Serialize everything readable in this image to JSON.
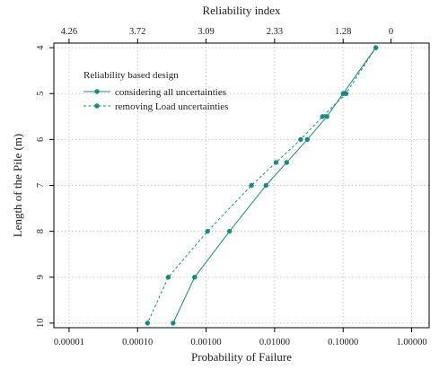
{
  "chart_data": {
    "type": "line",
    "title": "",
    "xlabel": "Probability of Failure",
    "ylabel": "Length of the Pile (m)",
    "x2label": "Reliability index",
    "x_scale": "log10",
    "xlim": [
      6e-06,
      1.8
    ],
    "ylim": [
      10.1,
      3.9
    ],
    "x_ticks": [
      1e-05,
      0.0001,
      0.001,
      0.01,
      0.1,
      1
    ],
    "x_tick_labels": [
      "0.00001",
      "0.00010",
      "0.00100",
      "0.01000",
      "0.10000",
      "1.00000"
    ],
    "y_ticks": [
      4,
      5,
      6,
      7,
      8,
      9,
      10
    ],
    "y_tick_labels": [
      "4",
      "5",
      "6",
      "7",
      "8",
      "9",
      "10"
    ],
    "x2_ticks": [
      1e-05,
      0.0001,
      0.001,
      0.01,
      0.1,
      0.5
    ],
    "x2_tick_labels": [
      "4.26",
      "3.72",
      "3.09",
      "2.33",
      "1.28",
      "0"
    ],
    "grid": true,
    "legend_title": "Reliability based design",
    "legend_position": "top-left",
    "color": "#138d80",
    "series": [
      {
        "name": "considering all uncertainties",
        "line_style": "solid",
        "points": [
          {
            "x": 0.3,
            "y": 4
          },
          {
            "x": 0.1,
            "y": 5
          },
          {
            "x": 0.058,
            "y": 5.5
          },
          {
            "x": 0.03,
            "y": 6
          },
          {
            "x": 0.015,
            "y": 6.5
          },
          {
            "x": 0.0075,
            "y": 7
          },
          {
            "x": 0.0022,
            "y": 8
          },
          {
            "x": 0.00068,
            "y": 9
          },
          {
            "x": 0.00033,
            "y": 10
          }
        ]
      },
      {
        "name": "removing Load uncertainties",
        "line_style": "dashed",
        "points": [
          {
            "x": 0.3,
            "y": 4
          },
          {
            "x": 0.11,
            "y": 5
          },
          {
            "x": 0.05,
            "y": 5.5
          },
          {
            "x": 0.024,
            "y": 6
          },
          {
            "x": 0.0105,
            "y": 6.5
          },
          {
            "x": 0.0046,
            "y": 7
          },
          {
            "x": 0.00105,
            "y": 8
          },
          {
            "x": 0.00028,
            "y": 9
          },
          {
            "x": 0.00014,
            "y": 10
          }
        ]
      }
    ]
  }
}
